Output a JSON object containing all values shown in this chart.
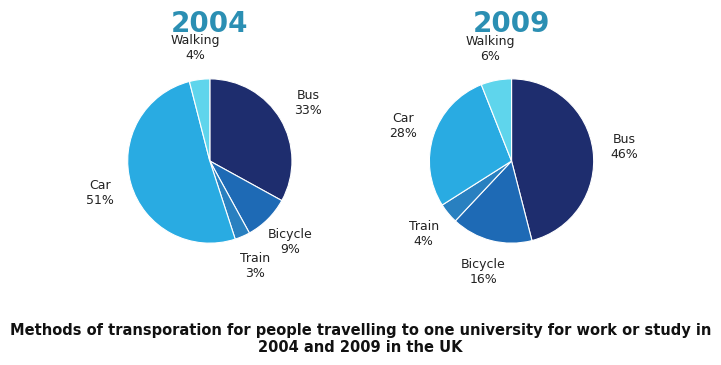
{
  "title_2004": "2004",
  "title_2009": "2009",
  "title_color": "#2b8fb3",
  "caption": "Methods of transporation for people travelling to one university for work or study in\n2004 and 2009 in the UK",
  "caption_fontsize": 10.5,
  "title_fontsize": 20,
  "label_fontsize": 9,
  "labels_2004": [
    "Bus",
    "Bicycle",
    "Train",
    "Car",
    "Walking"
  ],
  "values_2004": [
    33,
    9,
    3,
    51,
    4
  ],
  "labels_2009": [
    "Bus",
    "Bicycle",
    "Train",
    "Car",
    "Walking"
  ],
  "values_2009": [
    46,
    16,
    4,
    28,
    6
  ],
  "pie_colors_2004": [
    "#1e2d6e",
    "#1e6ab5",
    "#2980c0",
    "#29abe2",
    "#5fd5ec"
  ],
  "pie_colors_2009": [
    "#1e2d6e",
    "#1e6ab5",
    "#2980c0",
    "#29abe2",
    "#5fd5ec"
  ],
  "bg_color": "#ffffff"
}
